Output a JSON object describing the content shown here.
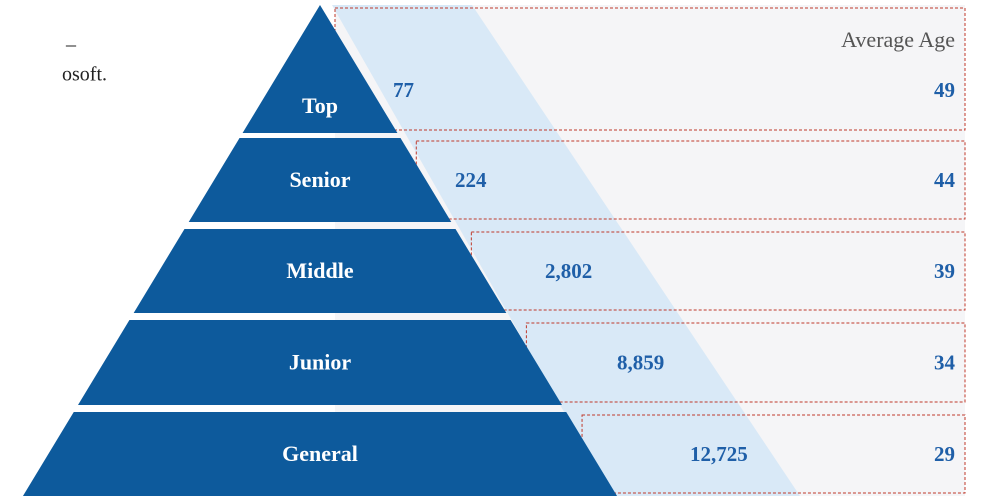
{
  "side_text": [
    "–",
    "osoft."
  ],
  "column_header": "Average Age",
  "levels": [
    {
      "label": "Top",
      "count": "77",
      "age": "49"
    },
    {
      "label": "Senior",
      "count": "224",
      "age": "44"
    },
    {
      "label": "Middle",
      "count": "2,802",
      "age": "39"
    },
    {
      "label": "Junior",
      "count": "8,859",
      "age": "34"
    },
    {
      "label": "General",
      "count": "12,725",
      "age": "29"
    }
  ]
}
